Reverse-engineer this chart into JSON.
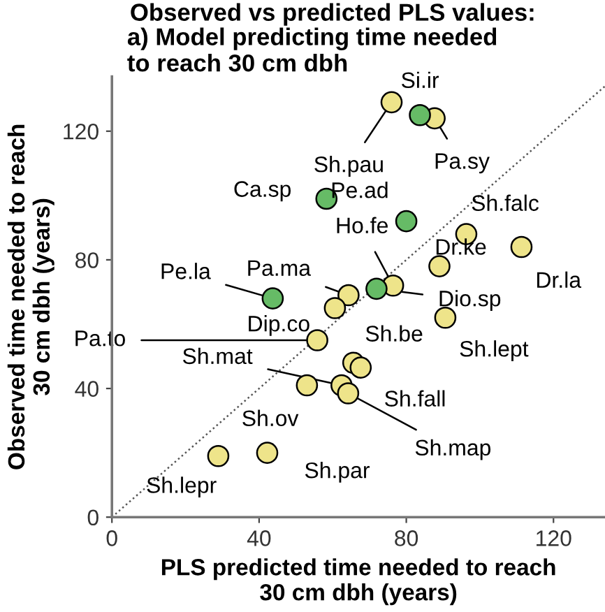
{
  "chart_data": {
    "type": "scatter",
    "title": "Observed vs predicted PLS values:",
    "subtitle": "a) Model predicting time needed\nto reach 30 cm dbh",
    "xlabel": "PLS predicted time needed to reach\n30 cm dbh (years)",
    "ylabel": "Observed time needed to reach\n30 cm dbh (years)",
    "series": [
      {
        "color": "#eee48a",
        "x": [
          76,
          87.7,
          96.3,
          111.3,
          89,
          76.4,
          64.3,
          60.6,
          90.6,
          55.8,
          65.6,
          67.6,
          62.4,
          64.2,
          53,
          42.2,
          28.9
        ],
        "values": [
          129,
          124,
          88,
          84,
          78,
          72,
          69,
          65,
          62,
          55,
          48,
          46.5,
          41,
          38.5,
          41,
          20,
          19
        ]
      },
      {
        "color": "#66bb66",
        "x": [
          83.7,
          58.3,
          80,
          71.9,
          43.7
        ],
        "values": [
          125,
          99,
          92,
          71,
          68
        ]
      },
      {
        "type": "line",
        "color": "#555555",
        "line_style": "dotted",
        "marker": "none",
        "x": [
          0,
          134
        ],
        "values": [
          0,
          134
        ]
      }
    ],
    "annotations": [
      {
        "text": "Sh.pau",
        "x": 76,
        "y": 129
      },
      {
        "text": "Pa.sy",
        "x": 87.7,
        "y": 124
      },
      {
        "text": "Sh.falc",
        "x": 96.3,
        "y": 88
      },
      {
        "text": "Dr.la",
        "x": 111.3,
        "y": 84
      },
      {
        "text": "Dr.ke",
        "x": 89,
        "y": 78
      },
      {
        "text": "Ho.fe",
        "x": 76.4,
        "y": 72
      },
      {
        "text": "Pa.ma",
        "x": 64.3,
        "y": 69
      },
      {
        "text": "Dip.co",
        "x": 60.6,
        "y": 65
      },
      {
        "text": "Sh.lept",
        "x": 90.6,
        "y": 62
      },
      {
        "text": "Pa.to",
        "x": 55.8,
        "y": 55
      },
      {
        "text": "Sh.be",
        "x": 65.6,
        "y": 48
      },
      {
        "text": "Sh.fall",
        "x": 67.6,
        "y": 46.5
      },
      {
        "text": "Sh.mat",
        "x": 62.4,
        "y": 41
      },
      {
        "text": "Sh.map",
        "x": 64.2,
        "y": 38.5
      },
      {
        "text": "Sh.ov",
        "x": 53,
        "y": 41
      },
      {
        "text": "Sh.par",
        "x": 42.2,
        "y": 20
      },
      {
        "text": "Sh.lepr",
        "x": 28.9,
        "y": 19
      },
      {
        "text": "Si.ir",
        "x": 83.7,
        "y": 125
      },
      {
        "text": "Ca.sp",
        "x": 58.3,
        "y": 99
      },
      {
        "text": "Pe.ad",
        "x": 80,
        "y": 92
      },
      {
        "text": "Dio.sp",
        "x": 71.9,
        "y": 71
      },
      {
        "text": "Pe.la",
        "x": 43.7,
        "y": 68
      }
    ],
    "xlim": [
      0,
      134
    ],
    "ylim": [
      0,
      137
    ],
    "xticks": [
      0,
      40,
      80,
      120
    ],
    "yticks": [
      0,
      40,
      80,
      120
    ],
    "marker": "circle",
    "grid": false,
    "legend": false
  }
}
